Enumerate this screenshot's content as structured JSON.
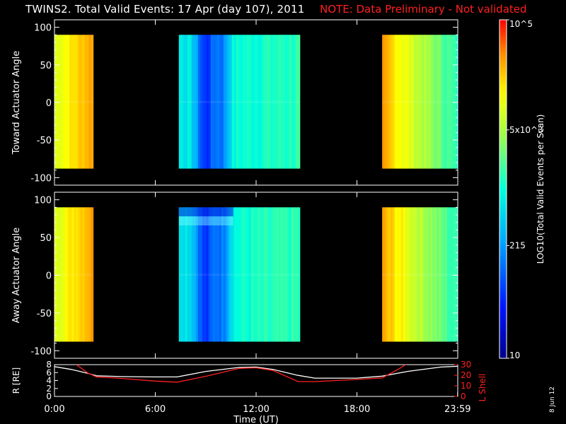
{
  "header": {
    "title": "TWINS2. Total Valid Events: 17 Apr (day 107), 2011",
    "note": "NOTE: Data Preliminary - Not validated"
  },
  "footer": {
    "stamp": "8 Jun 12"
  },
  "colors": {
    "note": "#ff2020",
    "rshell_line": "#ffffff",
    "lshell_line": "#ff2020",
    "no_data": "#000000"
  },
  "chart_data": [
    {
      "type": "heatmap",
      "ylabel": "Toward Actuator Angle",
      "ylim": [
        -110,
        110
      ],
      "yticks": [
        100,
        50,
        0,
        -50,
        -100
      ],
      "angle_coverage": [
        -88,
        90
      ],
      "data_blocks": [
        {
          "start_hour": 0.0,
          "end_hour": 2.3,
          "level": "high"
        },
        {
          "start_hour": 7.4,
          "end_hour": 14.6,
          "level": "low"
        },
        {
          "start_hour": 19.5,
          "end_hour": 23.99,
          "level": "mid"
        }
      ]
    },
    {
      "type": "heatmap",
      "ylabel": "Away Actuator Angle",
      "ylim": [
        -110,
        110
      ],
      "yticks": [
        100,
        50,
        0,
        -50,
        -100
      ],
      "angle_coverage": [
        -88,
        90
      ],
      "data_blocks": [
        {
          "start_hour": 0.0,
          "end_hour": 2.3,
          "level": "high"
        },
        {
          "start_hour": 7.4,
          "end_hour": 14.6,
          "level": "low"
        },
        {
          "start_hour": 19.5,
          "end_hour": 23.99,
          "level": "mid"
        }
      ]
    },
    {
      "type": "line",
      "xlabel": "Time (UT)",
      "xticks": [
        "0:00",
        "6:00",
        "12:00",
        "18:00",
        "23:59"
      ],
      "ylabel_left": "R [RE]",
      "ylabel_right": "L Shell",
      "ylim_left": [
        0,
        8
      ],
      "ylim_right": [
        0,
        30
      ],
      "yticks_left": [
        8,
        6,
        4,
        2,
        0
      ],
      "yticks_right": [
        30,
        20,
        10,
        0
      ],
      "series": [
        {
          "name": "R [RE]",
          "axis": "left",
          "x": [
            0,
            1,
            2,
            2.5,
            4,
            6,
            7.3,
            9,
            11,
            12,
            13,
            14.5,
            15.5,
            18,
            19.5,
            21,
            23,
            24
          ],
          "y": [
            7.5,
            6.8,
            5.8,
            5.2,
            5.0,
            4.9,
            4.9,
            6.3,
            7.3,
            7.4,
            6.8,
            5.3,
            4.6,
            4.6,
            5.1,
            6.3,
            7.4,
            7.6
          ]
        },
        {
          "name": "L Shell",
          "axis": "right",
          "x": [
            1.3,
            2,
            2.5,
            4,
            6,
            7.3,
            9,
            11,
            12,
            13,
            14.5,
            15.5,
            18,
            19.5,
            20.5,
            21
          ],
          "y": [
            30,
            22,
            18.5,
            17,
            14.5,
            13.5,
            19,
            26.5,
            27,
            24.5,
            14,
            14,
            16,
            17.5,
            26,
            31
          ]
        }
      ]
    }
  ],
  "colorbar": {
    "label": "LOG10(Total Valid Events per Scan)",
    "tick_labels": [
      {
        "text": "10",
        "value": 10
      },
      {
        "text": "215",
        "value": 215
      },
      {
        "text": "5x10^3",
        "value": 5000
      },
      {
        "text": "10^5",
        "value": 100000
      }
    ],
    "range": [
      10,
      100000
    ],
    "scale": "log"
  }
}
